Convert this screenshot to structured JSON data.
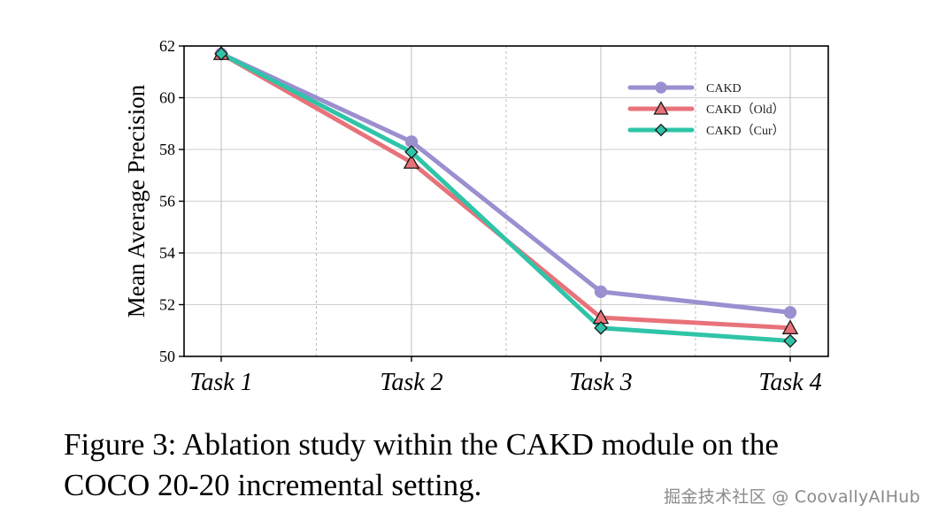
{
  "chart_data": {
    "type": "line",
    "categories": [
      "Task 1",
      "Task 2",
      "Task 3",
      "Task 4"
    ],
    "ylabel": "Mean Average Precision",
    "xlabel": "",
    "ylim": [
      50,
      62
    ],
    "yticks": [
      50,
      52,
      54,
      56,
      58,
      60,
      62
    ],
    "grid": true,
    "legend_position": "top-right",
    "series": [
      {
        "name": "CAKD",
        "values": [
          61.7,
          58.3,
          52.5,
          51.7
        ],
        "color": "#9b8fd0",
        "marker": "circle"
      },
      {
        "name": "CAKD（Old）",
        "values": [
          61.7,
          57.5,
          51.5,
          51.1
        ],
        "color": "#e8727a",
        "marker": "triangle"
      },
      {
        "name": "CAKD（Cur）",
        "values": [
          61.7,
          57.9,
          51.1,
          50.6
        ],
        "color": "#2fc4a8",
        "marker": "diamond"
      }
    ]
  },
  "caption": {
    "line1": "Figure 3: Ablation study within the CAKD module on the",
    "line2": "COCO 20-20 incremental setting."
  },
  "watermark": "掘金技术社区 @ CoovallyAIHub"
}
